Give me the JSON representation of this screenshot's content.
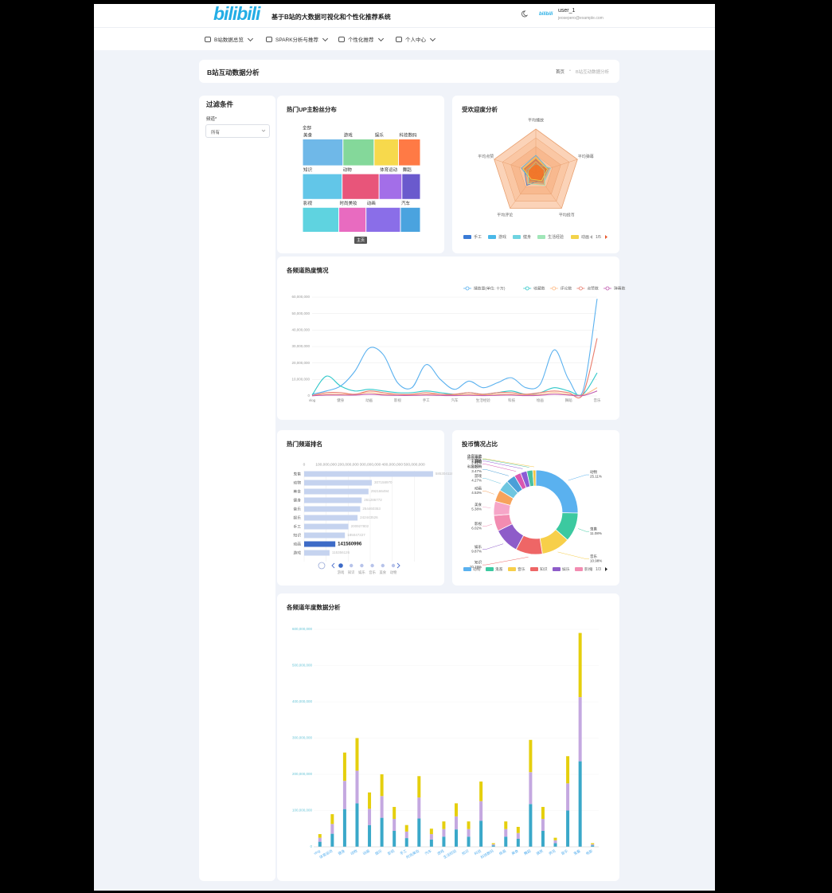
{
  "header": {
    "logo": "bilibili",
    "title": "基于B站的大数据可视化和个性化推荐系统",
    "mini_logo": "bilibili",
    "user": "user_1",
    "email": "jeosepero@example.com"
  },
  "nav": [
    "B站数据总览",
    "SPARK分析与推荐",
    "个性化推荐",
    "个人中心"
  ],
  "page": {
    "title": "B站互动数据分析",
    "breadcrumb": [
      "首页",
      "B站互动数据分析"
    ]
  },
  "filter": {
    "title": "过滤条件",
    "label": "频道*",
    "value": "所有"
  },
  "chart_data": [
    {
      "type": "treemap",
      "title": "热门UP主粉丝分布",
      "root": "全部",
      "button": "主页",
      "categories": [
        "美食",
        "游戏",
        "娱乐",
        "科技数码",
        "知识",
        "动物",
        "体育运动",
        "舞蹈",
        "影视",
        "时尚美妆",
        "动画",
        "汽车"
      ],
      "values": [
        48000000,
        37000000,
        29000000,
        26000000,
        45000000,
        42000000,
        26000000,
        21000000,
        40000000,
        30000000,
        38000000,
        22000000
      ],
      "colors": [
        "#6fb8e8",
        "#84d89a",
        "#f7d94c",
        "#ff7a45",
        "#62c6e8",
        "#e8557a",
        "#a36ee8",
        "#6a5acd",
        "#5fd3e0",
        "#e86bc0",
        "#8a6ee8",
        "#4aa3df"
      ]
    },
    {
      "type": "radar",
      "title": "受欢迎度分析",
      "indicators": [
        "平均播放",
        "平均弹幕",
        "平均投币",
        "平均评论",
        "平均点赞"
      ],
      "rlim": [
        0,
        100
      ],
      "pager": "1/5",
      "series": [
        {
          "name": "手工",
          "color": "#3a7bd5",
          "values": [
            30,
            25,
            20,
            35,
            28
          ]
        },
        {
          "name": "游戏",
          "color": "#4ab8e8",
          "values": [
            40,
            30,
            25,
            20,
            35
          ]
        },
        {
          "name": "健身",
          "color": "#6fd3e0",
          "values": [
            20,
            35,
            30,
            25,
            22
          ]
        },
        {
          "name": "生活经验",
          "color": "#a0e6b8",
          "values": [
            25,
            20,
            35,
            30,
            18
          ]
        },
        {
          "name": "动画",
          "color": "#f3d34a",
          "values": [
            35,
            28,
            22,
            18,
            30
          ]
        }
      ]
    },
    {
      "type": "line",
      "title": "各频道热度情况",
      "categories": [
        "vlog",
        null,
        "健身",
        null,
        "动画",
        null,
        "影视",
        null,
        "手工",
        null,
        "汽车",
        null,
        "生活经验",
        null,
        "科技",
        null,
        "绘画",
        null,
        "舞蹈",
        null,
        "音乐"
      ],
      "ylim": [
        0,
        60000000
      ],
      "yticks": [
        0,
        {
          "value": 10000000,
          "label": "10,000,000"
        },
        {
          "value": 20000000,
          "label": "20,000,000"
        },
        {
          "value": 30000000,
          "label": "30,000,000"
        },
        {
          "value": 40000000,
          "label": "40,000,000"
        },
        {
          "value": 50000000,
          "label": "50,000,000"
        },
        {
          "value": 60000000,
          "label": "60,000,000"
        }
      ],
      "series": [
        {
          "name": "播放量(单位: 十万)",
          "color": "#5ab1ef",
          "values": [
            1000000,
            3000000,
            6000000,
            15000000,
            29000000,
            25000000,
            8000000,
            5000000,
            19000000,
            10000000,
            4000000,
            9000000,
            5000000,
            8000000,
            11000000,
            5000000,
            7000000,
            28000000,
            10000000,
            3000000,
            59000000
          ]
        },
        {
          "name": "收藏数",
          "color": "#2ec7c9",
          "values": [
            500000,
            12000000,
            6000000,
            3000000,
            4000000,
            3000000,
            2000000,
            2000000,
            3000000,
            2000000,
            1000000,
            2000000,
            1000000,
            2000000,
            3000000,
            1000000,
            2000000,
            5000000,
            3000000,
            1000000,
            14000000
          ]
        },
        {
          "name": "评论数",
          "color": "#ffb980",
          "values": [
            200000,
            1000000,
            1000000,
            1000000,
            2000000,
            1000000,
            1000000,
            500000,
            1000000,
            1000000,
            500000,
            1000000,
            500000,
            1000000,
            1000000,
            500000,
            1000000,
            2000000,
            1000000,
            500000,
            5000000
          ]
        },
        {
          "name": "点赞数",
          "color": "#e87c6c",
          "values": [
            300000,
            2000000,
            2000000,
            1000000,
            3000000,
            2000000,
            1000000,
            1000000,
            2000000,
            1000000,
            1000000,
            2000000,
            1000000,
            2000000,
            2000000,
            1000000,
            2000000,
            3000000,
            2000000,
            1000000,
            35000000
          ]
        },
        {
          "name": "弹幕数",
          "color": "#c05bb0",
          "values": [
            100000,
            500000,
            500000,
            500000,
            1000000,
            500000,
            300000,
            300000,
            500000,
            300000,
            200000,
            400000,
            200000,
            400000,
            500000,
            200000,
            400000,
            1000000,
            500000,
            200000,
            3000000
          ]
        }
      ]
    },
    {
      "type": "hbar",
      "title": "热门频道排名",
      "categories": [
        "鬼畜",
        "动物",
        "美食",
        "健身",
        "音乐",
        "娱乐",
        "手工",
        "知识",
        "动画",
        "游戏"
      ],
      "values": [
        585304118,
        307158970,
        292166494,
        261286772,
        254460353,
        242443526,
        200927802,
        185047227,
        141560996,
        115356126
      ],
      "color": "#c5d3ef",
      "highlight_color": "#3d6bc7",
      "highlight_index": 8,
      "xlim": [
        0,
        600000000
      ],
      "xticks": [
        0,
        {
          "value": 100000000,
          "label": "100,000,000"
        },
        {
          "value": 200000000,
          "label": "200,000,000"
        },
        {
          "value": 300000000,
          "label": "300,000,000"
        },
        {
          "value": 400000000,
          "label": "400,000,000"
        },
        {
          "value": 500000000,
          "label": "500,000,000"
        }
      ],
      "timeline": [
        "游戏",
        "知识",
        "娱乐",
        "音乐",
        "美食",
        "动物"
      ]
    },
    {
      "type": "donut",
      "title": "投币情况占比",
      "pager": "1/3",
      "categories": [
        "动物",
        "鬼畜",
        "音乐",
        "知识",
        "娱乐",
        "影视",
        "美食",
        "动画",
        "游戏",
        "科技数码",
        "舞蹈",
        "时尚美妆",
        "汽车",
        "体育运动"
      ],
      "values": [
        25.11,
        11.08,
        10.98,
        10.19,
        9.87,
        6.02,
        5.38,
        4.53,
        4.27,
        3.47,
        2.53,
        2.42,
        2.28,
        1.16
      ],
      "value_labels": [
        "25.11%",
        "11.08%",
        "10.98%",
        "10.19%",
        "9.87%",
        "6.02%",
        "5.38%",
        "4.53%",
        "4.27%",
        "3.47%",
        "2.53%",
        "2.42%",
        "2.28%",
        "1.16%"
      ],
      "colors": [
        "#5ab1ef",
        "#3cc9a0",
        "#f7cf4a",
        "#ee6666",
        "#8e5cc9",
        "#f28cb1",
        "#f6a6c8",
        "#f7a35c",
        "#6ec6e0",
        "#4a9fd8",
        "#d957b0",
        "#8b5cd6",
        "#4ac0a0",
        "#f5c542"
      ]
    },
    {
      "type": "stacked_bar",
      "title": "各频道年度数据分析",
      "categories": [
        "vlog",
        "体育运动",
        "健身",
        "动物",
        "动画",
        "娱乐",
        "影视",
        "手工",
        "时尚美妆",
        "汽车",
        "游戏",
        "生活经验",
        "知识",
        "科技",
        "科技数码",
        "绘画",
        "美食",
        "舞蹈",
        "搞笑",
        "资讯",
        "音乐",
        "鬼畜",
        "电影"
      ],
      "ylim": [
        0,
        600000000
      ],
      "yticks": [
        0,
        {
          "value": 100000000,
          "label": "100,000,000"
        },
        {
          "value": 200000000,
          "label": "200,000,000"
        },
        {
          "value": 300000000,
          "label": "300,000,000"
        },
        {
          "value": 400000000,
          "label": "400,000,000"
        },
        {
          "value": 500000000,
          "label": "500,000,000"
        },
        {
          "value": 600000000,
          "label": "600,000,000"
        }
      ],
      "series": [
        {
          "color": "#3aa8c9",
          "values": [
            14000000,
            36000000,
            104000000,
            120000000,
            60000000,
            80000000,
            44000000,
            24000000,
            78000000,
            20000000,
            28000000,
            48000000,
            28000000,
            72000000,
            4000000,
            28000000,
            22000000,
            118000000,
            44000000,
            10000000,
            100000000,
            236000000,
            4000000
          ]
        },
        {
          "color": "#c4a8e0",
          "values": [
            11000000,
            27000000,
            78000000,
            90000000,
            45000000,
            60000000,
            33000000,
            18000000,
            58000000,
            15000000,
            21000000,
            36000000,
            21000000,
            54000000,
            3000000,
            21000000,
            16000000,
            88000000,
            33000000,
            8000000,
            75000000,
            177000000,
            3000000
          ]
        },
        {
          "color": "#e5cf0d",
          "values": [
            10000000,
            27000000,
            78000000,
            90000000,
            45000000,
            60000000,
            33000000,
            18000000,
            59000000,
            15000000,
            21000000,
            36000000,
            21000000,
            54000000,
            3000000,
            21000000,
            17000000,
            89000000,
            33000000,
            7000000,
            75000000,
            177000000,
            3000000
          ]
        }
      ]
    }
  ]
}
